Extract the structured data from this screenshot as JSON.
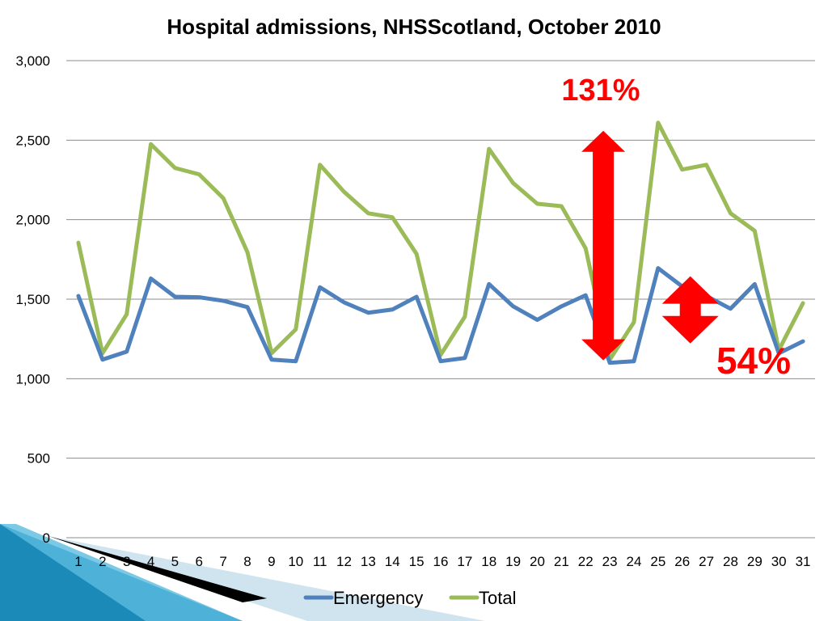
{
  "chart_data": {
    "type": "line",
    "title": "Hospital admissions, NHSScotland, October 2010",
    "xlabel": "",
    "ylabel": "",
    "ylim": [
      0,
      3000
    ],
    "y_ticks": [
      0,
      500,
      1000,
      1500,
      2000,
      2500,
      3000
    ],
    "y_tick_labels": [
      "0",
      "500",
      "1,000",
      "1,500",
      "2,000",
      "2,500",
      "3,000"
    ],
    "x": [
      1,
      2,
      3,
      4,
      5,
      6,
      7,
      8,
      9,
      10,
      11,
      12,
      13,
      14,
      15,
      16,
      17,
      18,
      19,
      20,
      21,
      22,
      23,
      24,
      25,
      26,
      27,
      28,
      29,
      30,
      31
    ],
    "grid": true,
    "legend": "bottom",
    "series": [
      {
        "name": "Emergency",
        "color": "#4f81bd",
        "values": [
          1520,
          1120,
          1170,
          1630,
          1515,
          1512,
          1490,
          1450,
          1120,
          1110,
          1575,
          1480,
          1415,
          1435,
          1515,
          1110,
          1130,
          1595,
          1455,
          1370,
          1455,
          1525,
          1100,
          1110,
          1695,
          1580,
          1520,
          1440,
          1595,
          1160,
          1235
        ]
      },
      {
        "name": "Total",
        "color": "#9bbb59",
        "values": [
          1855,
          1160,
          1405,
          2475,
          2325,
          2285,
          2135,
          1795,
          1160,
          1310,
          2345,
          2175,
          2040,
          2015,
          1785,
          1150,
          1390,
          2445,
          2230,
          2100,
          2085,
          1820,
          1120,
          1355,
          2610,
          2315,
          2345,
          2040,
          1930,
          1180,
          1475
        ]
      }
    ],
    "annotations": [
      {
        "text": "131%",
        "color": "#ff0000",
        "from": 1100,
        "to": 2610,
        "x": 23
      },
      {
        "text": "54%",
        "color": "#ff0000",
        "from": 1110,
        "to": 1695,
        "x": 26
      }
    ]
  }
}
